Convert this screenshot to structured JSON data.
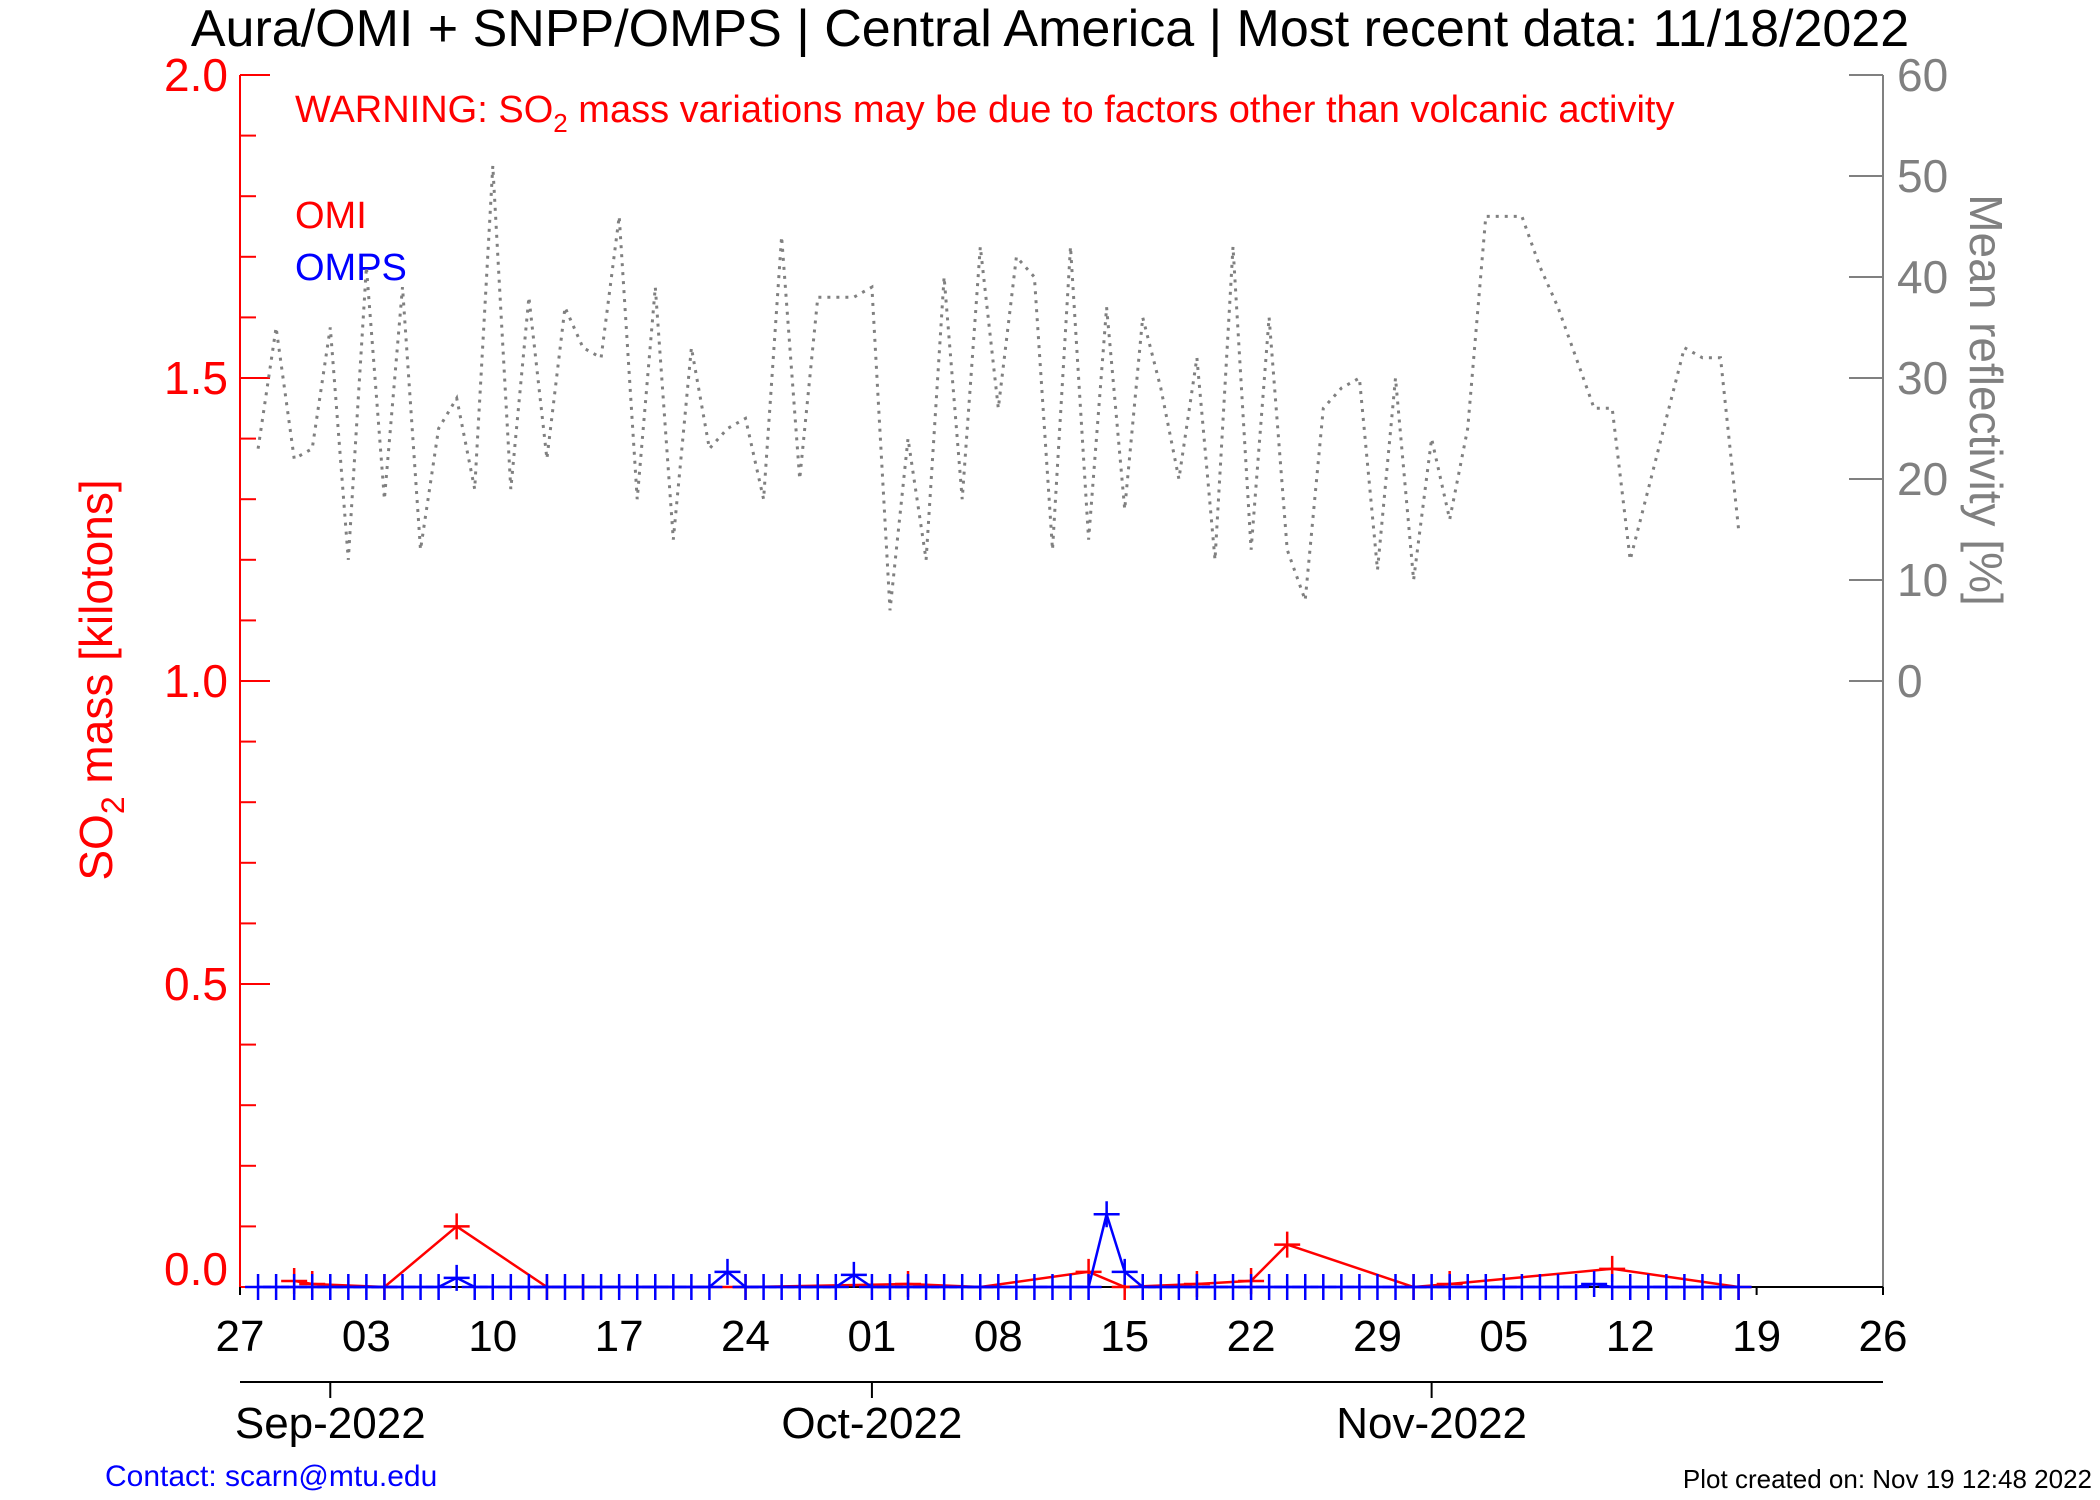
{
  "chart_data": {
    "type": "line",
    "title": "Aura/OMI + SNPP/OMPS | Central America | Most recent data: 11/18/2022",
    "warning": {
      "before": "WARNING: SO",
      "sub": "2",
      "after": " mass variations may be due to factors other than volcanic activity"
    },
    "ylabel": {
      "before": "SO",
      "sub": "2",
      "after": " mass [kilotons]"
    },
    "y2label": "Mean reflectivity [%]",
    "contact": "Contact: scarn@mtu.edu",
    "created": "Plot created on: Nov 19 12:48 2022",
    "xlim": [
      "2022-08-27",
      "2022-11-26"
    ],
    "xticks": [
      {
        "value": "2022-08-27",
        "label": "27"
      },
      {
        "value": "2022-09-03",
        "label": "03"
      },
      {
        "value": "2022-09-10",
        "label": "10"
      },
      {
        "value": "2022-09-17",
        "label": "17"
      },
      {
        "value": "2022-09-24",
        "label": "24"
      },
      {
        "value": "2022-10-01",
        "label": "01"
      },
      {
        "value": "2022-10-08",
        "label": "08"
      },
      {
        "value": "2022-10-15",
        "label": "15"
      },
      {
        "value": "2022-10-22",
        "label": "22"
      },
      {
        "value": "2022-10-29",
        "label": "29"
      },
      {
        "value": "2022-11-05",
        "label": "05"
      },
      {
        "value": "2022-11-12",
        "label": "12"
      },
      {
        "value": "2022-11-19",
        "label": "19"
      },
      {
        "value": "2022-11-26",
        "label": "26"
      }
    ],
    "month_ticks": [
      {
        "value": "2022-09-01",
        "label": "Sep-2022"
      },
      {
        "value": "2022-10-01",
        "label": "Oct-2022"
      },
      {
        "value": "2022-11-01",
        "label": "Nov-2022"
      }
    ],
    "ylim": [
      0,
      2.0
    ],
    "yticks": [
      {
        "value": 0,
        "label": "0.0"
      },
      {
        "value": 0.5,
        "label": "0.5"
      },
      {
        "value": 1.0,
        "label": "1.0"
      },
      {
        "value": 1.5,
        "label": "1.5"
      },
      {
        "value": 2.0,
        "label": "2.0"
      }
    ],
    "yminorticks": [
      0.1,
      0.2,
      0.3,
      0.4,
      0.6,
      0.7,
      0.8,
      0.9,
      1.1,
      1.2,
      1.3,
      1.4,
      1.6,
      1.7,
      1.8,
      1.9
    ],
    "y2lim": [
      -60,
      60
    ],
    "y2ticks": [
      0,
      10,
      20,
      30,
      40,
      50,
      60
    ],
    "x": [
      "2022-08-28",
      "2022-08-29",
      "2022-08-30",
      "2022-08-31",
      "2022-09-01",
      "2022-09-02",
      "2022-09-03",
      "2022-09-04",
      "2022-09-05",
      "2022-09-06",
      "2022-09-07",
      "2022-09-08",
      "2022-09-09",
      "2022-09-10",
      "2022-09-11",
      "2022-09-12",
      "2022-09-13",
      "2022-09-14",
      "2022-09-15",
      "2022-09-16",
      "2022-09-17",
      "2022-09-18",
      "2022-09-19",
      "2022-09-20",
      "2022-09-21",
      "2022-09-22",
      "2022-09-23",
      "2022-09-24",
      "2022-09-25",
      "2022-09-26",
      "2022-09-27",
      "2022-09-28",
      "2022-09-29",
      "2022-09-30",
      "2022-10-01",
      "2022-10-02",
      "2022-10-03",
      "2022-10-04",
      "2022-10-05",
      "2022-10-06",
      "2022-10-07",
      "2022-10-08",
      "2022-10-09",
      "2022-10-10",
      "2022-10-11",
      "2022-10-12",
      "2022-10-13",
      "2022-10-14",
      "2022-10-15",
      "2022-10-16",
      "2022-10-17",
      "2022-10-18",
      "2022-10-19",
      "2022-10-20",
      "2022-10-21",
      "2022-10-22",
      "2022-10-23",
      "2022-10-24",
      "2022-10-25",
      "2022-10-26",
      "2022-10-27",
      "2022-10-28",
      "2022-10-29",
      "2022-10-30",
      "2022-10-31",
      "2022-11-01",
      "2022-11-02",
      "2022-11-03",
      "2022-11-04",
      "2022-11-05",
      "2022-11-06",
      "2022-11-07",
      "2022-11-08",
      "2022-11-09",
      "2022-11-10",
      "2022-11-11",
      "2022-11-12",
      "2022-11-13",
      "2022-11-14",
      "2022-11-15",
      "2022-11-16",
      "2022-11-17",
      "2022-11-18"
    ],
    "series": [
      {
        "name": "OMI",
        "color": "#ff0000",
        "marker": "plus",
        "x": [
          "2022-08-30",
          "2022-08-31",
          "2022-09-04",
          "2022-09-08",
          "2022-09-13",
          "2022-09-15",
          "2022-09-19",
          "2022-09-24",
          "2022-10-03",
          "2022-10-07",
          "2022-10-13",
          "2022-10-15",
          "2022-10-19",
          "2022-10-22",
          "2022-10-24",
          "2022-10-31",
          "2022-11-02",
          "2022-11-11",
          "2022-11-18"
        ],
        "values": [
          0.01,
          0.005,
          0,
          0.1,
          0,
          0,
          0,
          0,
          0.005,
          0,
          0.025,
          0,
          0.005,
          0.01,
          0.07,
          0,
          0.005,
          0.03,
          0
        ]
      },
      {
        "name": "OMPS",
        "color": "#0000ff",
        "marker": "plus",
        "values": [
          0,
          0,
          0,
          0,
          0,
          0,
          0,
          0,
          0,
          0,
          0,
          0.015,
          0,
          0,
          0,
          0,
          0,
          0,
          0,
          0,
          0,
          0,
          0,
          0,
          0,
          0,
          0.025,
          0,
          0,
          0,
          0,
          0,
          0,
          0.02,
          0,
          0,
          0,
          0,
          0,
          0,
          0,
          0,
          0,
          0,
          0,
          0,
          0,
          0.12,
          0.025,
          0,
          0,
          0,
          0,
          0,
          0,
          0,
          0,
          0,
          0,
          0,
          0,
          0,
          0,
          0,
          0,
          0,
          0,
          0,
          0,
          0,
          0,
          0,
          0,
          0,
          0.005,
          0,
          0,
          0,
          0,
          0,
          0,
          0,
          0
        ]
      },
      {
        "color": "#808080",
        "axis": "y2",
        "style": "dotted",
        "values": [
          23,
          35,
          22,
          23,
          35,
          12,
          41,
          18,
          39,
          13,
          25,
          28,
          19,
          51,
          19,
          38,
          22,
          37,
          33,
          32,
          46,
          18,
          39,
          14,
          33,
          23,
          25,
          26,
          18,
          44,
          20,
          38,
          38,
          38,
          39,
          7,
          24,
          12,
          40,
          18,
          43,
          27,
          42,
          40,
          13,
          43,
          14,
          37,
          17,
          36,
          29,
          20,
          32,
          12,
          43,
          13,
          36,
          13,
          8,
          27,
          29,
          30,
          11,
          30,
          10,
          24,
          16,
          25,
          46,
          46,
          46,
          41,
          37,
          32,
          27,
          27,
          12,
          19,
          26,
          33,
          32,
          32,
          15
        ]
      }
    ]
  }
}
